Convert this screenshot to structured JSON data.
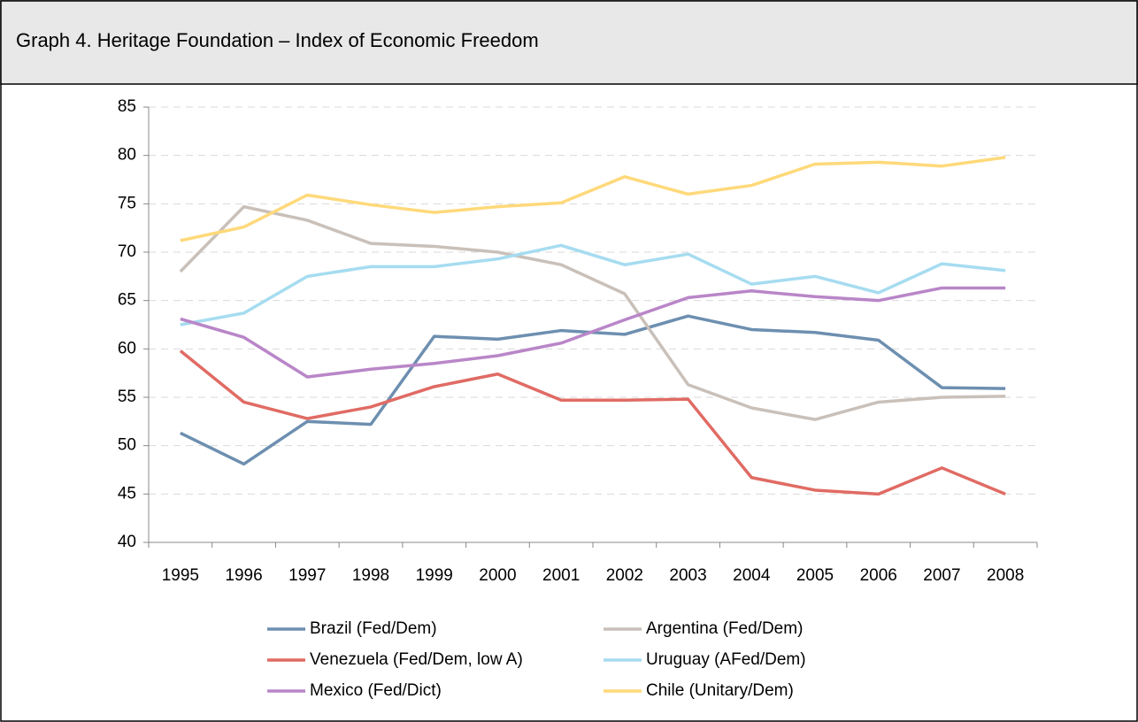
{
  "header": {
    "title": "Graph 4. Heritage Foundation – Index of Economic Freedom"
  },
  "chart_data": {
    "type": "line",
    "categories": [
      "1995",
      "1996",
      "1997",
      "1998",
      "1999",
      "2000",
      "2001",
      "2002",
      "2003",
      "2004",
      "2005",
      "2006",
      "2007",
      "2008"
    ],
    "ylim": [
      40,
      85
    ],
    "yticks": [
      40,
      45,
      50,
      55,
      60,
      65,
      70,
      75,
      80,
      85
    ],
    "grid": true,
    "series": [
      {
        "name": "Brazil (Fed/Dem)",
        "color": "#6d8fb0",
        "values": [
          51.3,
          48.1,
          52.5,
          52.2,
          61.3,
          61.0,
          61.9,
          61.5,
          63.4,
          62.0,
          61.7,
          60.9,
          56.0,
          55.9
        ]
      },
      {
        "name": "Argentina (Fed/Dem)",
        "color": "#c9c0b9",
        "values": [
          68.0,
          74.7,
          73.3,
          70.9,
          70.6,
          70.0,
          68.7,
          65.7,
          56.3,
          53.9,
          52.7,
          54.5,
          55.0,
          55.1
        ]
      },
      {
        "name": "Venezuela (Fed/Dem, low A)",
        "color": "#e06b64",
        "values": [
          59.8,
          54.5,
          52.8,
          54.0,
          56.1,
          57.4,
          54.7,
          54.7,
          54.8,
          46.7,
          45.4,
          45.0,
          47.7,
          45.0
        ]
      },
      {
        "name": "Uruguay (AFed/Dem)",
        "color": "#a6dcf0",
        "values": [
          62.5,
          63.7,
          67.5,
          68.5,
          68.5,
          69.3,
          70.7,
          68.7,
          69.8,
          66.7,
          67.5,
          65.8,
          68.8,
          68.1
        ]
      },
      {
        "name": "Mexico (Fed/Dict)",
        "color": "#b986c8",
        "values": [
          63.1,
          61.2,
          57.1,
          57.9,
          58.5,
          59.3,
          60.6,
          63.0,
          65.3,
          66.0,
          65.4,
          65.0,
          66.3,
          66.3
        ]
      },
      {
        "name": "Chile (Unitary/Dem)",
        "color": "#ffd97a",
        "values": [
          71.2,
          72.6,
          75.9,
          74.9,
          74.1,
          74.7,
          75.1,
          77.8,
          76.0,
          76.9,
          79.1,
          79.3,
          78.9,
          79.8
        ]
      }
    ]
  }
}
